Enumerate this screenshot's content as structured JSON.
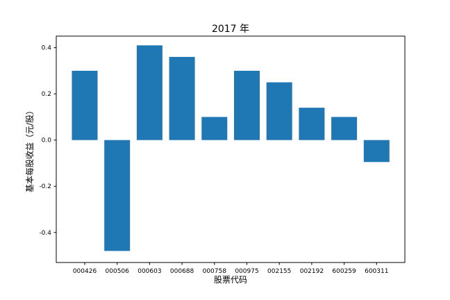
{
  "chart_data": {
    "type": "bar",
    "title": "2017 年",
    "xlabel": "股票代码",
    "ylabel": "基本每股收益（元/股）",
    "categories": [
      "000426",
      "000506",
      "000603",
      "000688",
      "000758",
      "000975",
      "002155",
      "002192",
      "600259",
      "600311"
    ],
    "values": [
      0.3,
      -0.48,
      0.41,
      0.36,
      0.1,
      0.3,
      0.25,
      0.14,
      0.1,
      -0.095
    ],
    "ylim": [
      -0.53,
      0.45
    ],
    "yticks": [
      -0.4,
      -0.2,
      0.0,
      0.2,
      0.4
    ],
    "ytick_labels": [
      "-0.4",
      "-0.2",
      "0.0",
      "0.2",
      "0.4"
    ],
    "bar_color": "#1f77b4",
    "grid": false,
    "legend": "none"
  }
}
